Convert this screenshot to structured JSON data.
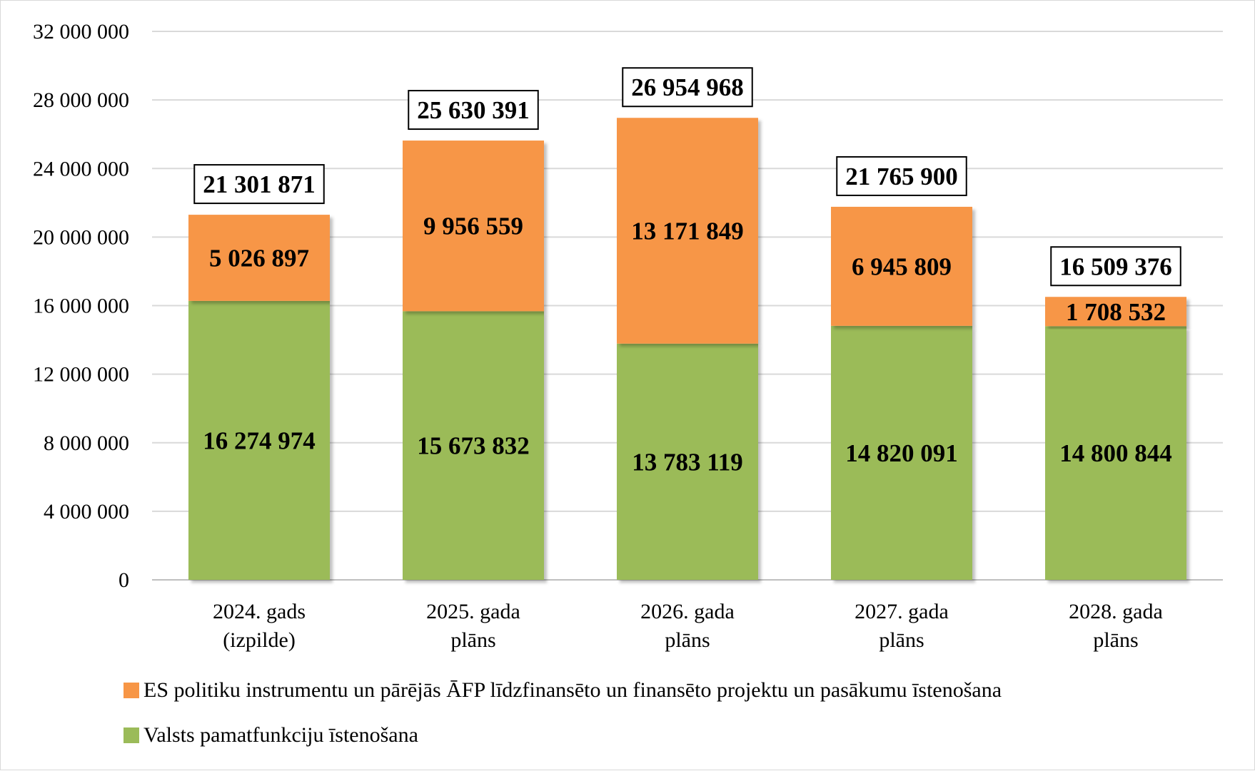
{
  "chart_data": {
    "type": "bar",
    "stacked": true,
    "categories": [
      [
        "2024. gads",
        "(izpilde)"
      ],
      [
        "2025. gada",
        "plāns"
      ],
      [
        "2026. gada",
        "plāns"
      ],
      [
        "2027. gada",
        "plāns"
      ],
      [
        "2028. gada",
        "plāns"
      ]
    ],
    "series": [
      {
        "name": "Valsts pamatfunkciju īstenošana",
        "color": "#9bbb59",
        "values": [
          16274974,
          15673832,
          13783119,
          14820091,
          14800844
        ],
        "labels": [
          "16 274 974",
          "15 673 832",
          "13 783 119",
          "14 820 091",
          "14 800 844"
        ]
      },
      {
        "name": "ES politiku instrumentu un pārējās ĀFP līdzfinansēto un finansēto projektu un pasākumu īstenošana",
        "color": "#f79646",
        "values": [
          5026897,
          9956559,
          13171849,
          6945809,
          1708532
        ],
        "labels": [
          "5 026 897",
          "9 956 559",
          "13 171 849",
          "6 945 809",
          "1 708 532"
        ]
      }
    ],
    "totals": [
      21301871,
      25630391,
      26954968,
      21765900,
      16509376
    ],
    "total_labels": [
      "21 301 871",
      "25 630 391",
      "26 954 968",
      "21 765 900",
      "16 509 376"
    ],
    "ylim": [
      0,
      32000000
    ],
    "yticks": [
      0,
      4000000,
      8000000,
      12000000,
      16000000,
      20000000,
      24000000,
      28000000,
      32000000
    ],
    "ytick_labels": [
      "0",
      "4 000 000",
      "8 000 000",
      "12 000 000",
      "16 000 000",
      "20 000 000",
      "24 000 000",
      "28 000 000",
      "32 000 000"
    ],
    "grid": true,
    "legend_position": "bottom",
    "legend_order": [
      1,
      0
    ]
  }
}
